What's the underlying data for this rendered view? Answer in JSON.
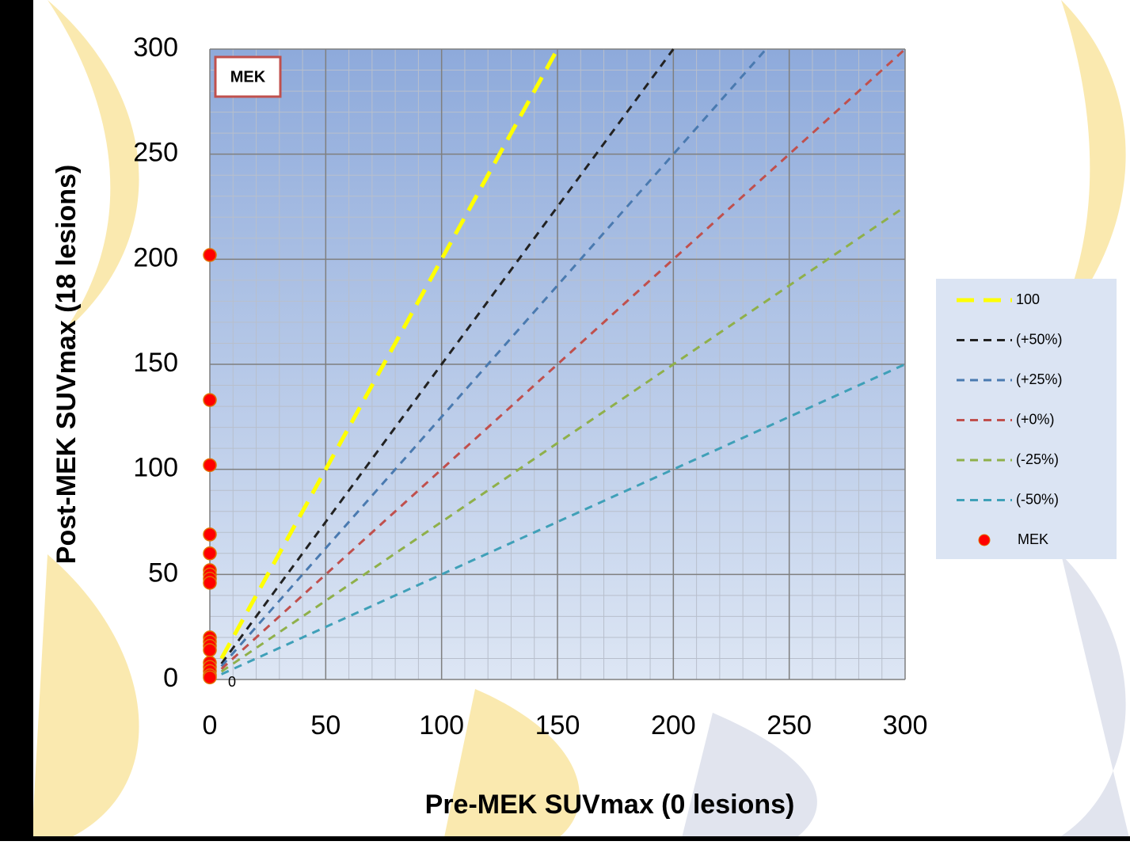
{
  "chart_data": {
    "type": "scatter",
    "x_label": "Pre-MEK SUVmax (0 lesions)",
    "y_label": "Post-MEK SUVmax (18 lesions)",
    "annotation": "MEK",
    "point_label": "0",
    "xlim": [
      0,
      300
    ],
    "ylim": [
      0,
      300
    ],
    "xticks": [
      0,
      50,
      100,
      150,
      200,
      250,
      300
    ],
    "yticks": [
      0,
      50,
      100,
      150,
      200,
      250,
      300
    ],
    "grid": true,
    "legend": "right",
    "series": [
      {
        "name": "100",
        "mode": "line",
        "color": "#ffff00",
        "width": 5,
        "x": [
          5,
          150
        ],
        "values": [
          10,
          300
        ]
      },
      {
        "name": "(+50%)",
        "mode": "line",
        "color": "#222222",
        "width": 3,
        "x": [
          5,
          200
        ],
        "values": [
          7.5,
          300
        ]
      },
      {
        "name": "(+25%)",
        "mode": "line",
        "color": "#4a7ab0",
        "width": 3,
        "x": [
          5,
          240
        ],
        "values": [
          6.25,
          300
        ]
      },
      {
        "name": "(+0%)",
        "mode": "line",
        "color": "#c0504d",
        "width": 3,
        "x": [
          5,
          300
        ],
        "values": [
          5,
          300
        ]
      },
      {
        "name": "(-25%)",
        "mode": "line",
        "color": "#8fb04a",
        "width": 3,
        "x": [
          5,
          300
        ],
        "values": [
          3.75,
          225
        ]
      },
      {
        "name": "(-50%)",
        "mode": "line",
        "color": "#3fa0b8",
        "width": 3,
        "x": [
          5,
          300
        ],
        "values": [
          2.5,
          150
        ]
      },
      {
        "name": "MEK",
        "mode": "markers",
        "color": "#ff0000",
        "x": [
          0,
          0,
          0,
          0,
          0,
          0,
          0,
          0,
          0,
          0,
          0,
          0,
          0,
          0,
          0,
          0,
          0,
          0
        ],
        "values": [
          202,
          133,
          102,
          69,
          60,
          52,
          50,
          48,
          46,
          20,
          18,
          16,
          14,
          8,
          6,
          4,
          2,
          1
        ]
      }
    ]
  }
}
